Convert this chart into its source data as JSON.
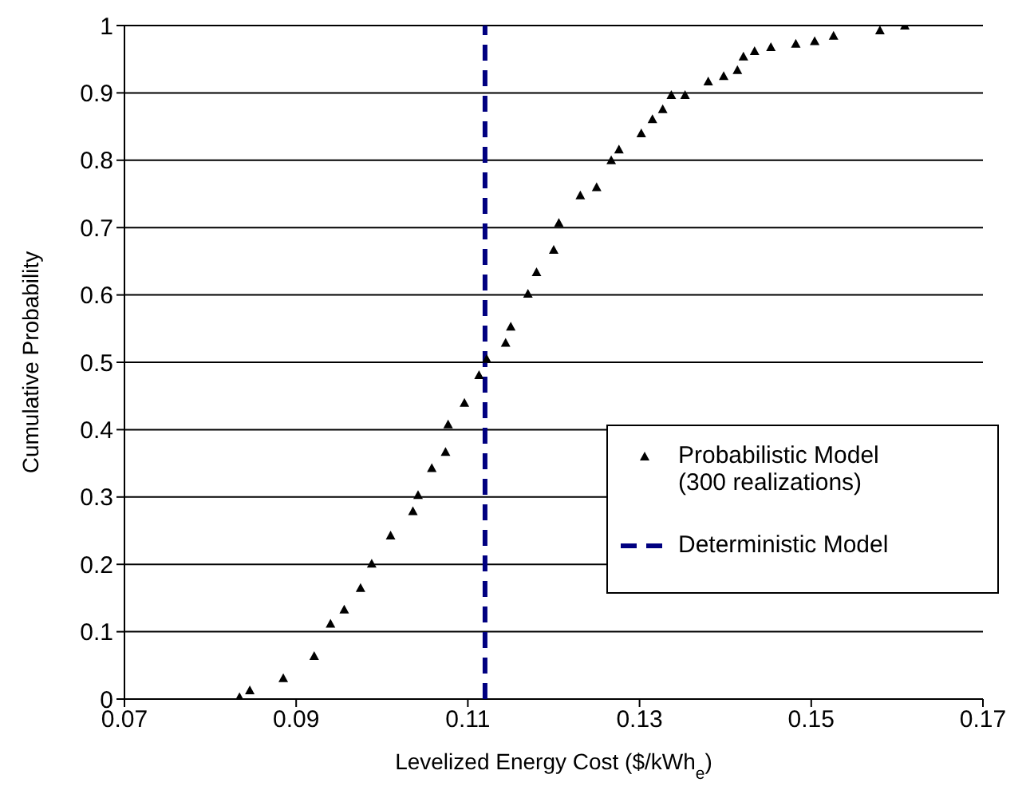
{
  "chart_data": {
    "type": "scatter",
    "xlabel": "Levelized Energy Cost ($/kWh$_{e}$)",
    "ylabel": "Cumulative Probability",
    "xlim": [
      0.07,
      0.17
    ],
    "xticks": [
      0.07,
      0.09,
      0.11,
      0.13,
      0.15,
      0.17
    ],
    "ylim": [
      0,
      1
    ],
    "yticks": [
      0,
      0.1,
      0.2,
      0.3,
      0.4,
      0.5,
      0.6,
      0.7,
      0.8,
      0.9,
      1
    ],
    "grid": "y",
    "legend": "bottom right",
    "series": [
      {
        "name": "Probabilistic Model\n(300 realizations)",
        "marker": "triangle",
        "color": "#000000",
        "x": [
          0.0834,
          0.0846,
          0.0885,
          0.0921,
          0.094,
          0.0956,
          0.0975,
          0.0988,
          0.101,
          0.1036,
          0.1042,
          0.1058,
          0.1074,
          0.1077,
          0.1096,
          0.1113,
          0.1122,
          0.1144,
          0.115,
          0.117,
          0.118,
          0.12,
          0.1206,
          0.1231,
          0.125,
          0.1267,
          0.1276,
          0.1302,
          0.1315,
          0.1327,
          0.1337,
          0.1353,
          0.138,
          0.1398,
          0.1414,
          0.1421,
          0.1434,
          0.1453,
          0.1482,
          0.1504,
          0.1526,
          0.158,
          0.1609
        ],
        "values": [
          0.003,
          0.013,
          0.031,
          0.064,
          0.112,
          0.133,
          0.165,
          0.201,
          0.243,
          0.279,
          0.303,
          0.343,
          0.367,
          0.408,
          0.44,
          0.481,
          0.505,
          0.529,
          0.553,
          0.602,
          0.634,
          0.667,
          0.707,
          0.748,
          0.76,
          0.8,
          0.816,
          0.84,
          0.861,
          0.876,
          0.897,
          0.897,
          0.917,
          0.925,
          0.934,
          0.954,
          0.962,
          0.968,
          0.973,
          0.977,
          0.985,
          0.993,
          1
        ]
      },
      {
        "name": "Deterministic Model",
        "type": "line",
        "line_style": "dashed",
        "color": "#000080",
        "x": [
          0.112,
          0.112
        ],
        "values": [
          0,
          1
        ]
      }
    ]
  }
}
